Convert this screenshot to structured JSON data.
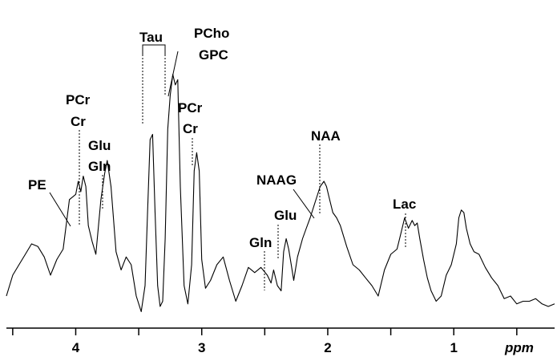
{
  "chart_data": {
    "type": "line",
    "title": "",
    "xlabel": "ppm",
    "ylabel": "",
    "x_reversed": true,
    "xlim": [
      4.55,
      0.2
    ],
    "ylim": [
      0,
      1
    ],
    "grid": false,
    "legend": "none",
    "x_ticks": [
      4,
      3,
      2,
      1
    ],
    "x_tick_labels": [
      "4",
      "3",
      "2",
      "1"
    ],
    "x_minor_ticks": [
      4.5,
      3.5,
      2.5,
      1.5,
      0.5
    ],
    "series": [
      {
        "x": [
          4.55,
          4.5,
          4.45,
          4.4,
          4.35,
          4.3,
          4.25,
          4.2,
          4.15,
          4.1,
          4.05,
          4.0,
          3.98,
          3.96,
          3.94,
          3.92,
          3.9,
          3.87,
          3.84,
          3.8,
          3.77,
          3.75,
          3.72,
          3.68,
          3.64,
          3.6,
          3.56,
          3.52,
          3.48,
          3.45,
          3.43,
          3.41,
          3.39,
          3.37,
          3.35,
          3.33,
          3.31,
          3.29,
          3.27,
          3.25,
          3.23,
          3.21,
          3.19,
          3.17,
          3.14,
          3.11,
          3.08,
          3.06,
          3.04,
          3.02,
          3.0,
          2.97,
          2.93,
          2.88,
          2.83,
          2.78,
          2.73,
          2.68,
          2.63,
          2.58,
          2.53,
          2.48,
          2.45,
          2.43,
          2.4,
          2.37,
          2.35,
          2.33,
          2.31,
          2.29,
          2.27,
          2.24,
          2.2,
          2.17,
          2.14,
          2.1,
          2.06,
          2.03,
          2.01,
          1.99,
          1.96,
          1.93,
          1.9,
          1.85,
          1.8,
          1.75,
          1.7,
          1.65,
          1.6,
          1.55,
          1.5,
          1.45,
          1.42,
          1.39,
          1.36,
          1.33,
          1.31,
          1.29,
          1.27,
          1.24,
          1.21,
          1.18,
          1.14,
          1.1,
          1.06,
          1.02,
          0.98,
          0.96,
          0.94,
          0.92,
          0.9,
          0.87,
          0.84,
          0.8,
          0.75,
          0.7,
          0.65,
          0.6,
          0.55,
          0.5,
          0.45,
          0.4,
          0.35,
          0.3,
          0.25,
          0.2
        ],
        "y": [
          0.08,
          0.16,
          0.2,
          0.24,
          0.28,
          0.27,
          0.23,
          0.16,
          0.22,
          0.26,
          0.45,
          0.47,
          0.52,
          0.48,
          0.54,
          0.5,
          0.35,
          0.29,
          0.24,
          0.45,
          0.55,
          0.6,
          0.5,
          0.25,
          0.18,
          0.23,
          0.2,
          0.08,
          0.02,
          0.12,
          0.4,
          0.68,
          0.7,
          0.4,
          0.12,
          0.04,
          0.06,
          0.3,
          0.72,
          0.85,
          0.93,
          0.89,
          0.91,
          0.5,
          0.12,
          0.05,
          0.2,
          0.56,
          0.63,
          0.56,
          0.22,
          0.11,
          0.14,
          0.2,
          0.23,
          0.14,
          0.06,
          0.12,
          0.19,
          0.17,
          0.19,
          0.16,
          0.13,
          0.18,
          0.12,
          0.1,
          0.25,
          0.3,
          0.26,
          0.2,
          0.14,
          0.23,
          0.3,
          0.34,
          0.38,
          0.44,
          0.5,
          0.52,
          0.5,
          0.46,
          0.4,
          0.38,
          0.35,
          0.27,
          0.2,
          0.18,
          0.15,
          0.12,
          0.08,
          0.18,
          0.24,
          0.26,
          0.32,
          0.38,
          0.34,
          0.37,
          0.35,
          0.36,
          0.3,
          0.22,
          0.15,
          0.1,
          0.06,
          0.08,
          0.16,
          0.2,
          0.28,
          0.38,
          0.41,
          0.4,
          0.34,
          0.28,
          0.25,
          0.24,
          0.19,
          0.15,
          0.12,
          0.07,
          0.08,
          0.05,
          0.06,
          0.06,
          0.07,
          0.05,
          0.04,
          0.05
        ]
      }
    ],
    "annotations": [
      {
        "lines": [
          "PE"
        ],
        "x": 4.02
      },
      {
        "lines": [
          "PCr",
          "Cr"
        ],
        "x": 3.93
      },
      {
        "lines": [
          "Glu",
          "Gln"
        ],
        "x": 3.75
      },
      {
        "lines": [
          "Tau"
        ],
        "x": [
          3.42,
          3.25
        ]
      },
      {
        "lines": [
          "PCho",
          "GPC"
        ],
        "x": 3.21
      },
      {
        "lines": [
          "PCr",
          "Cr"
        ],
        "x": 3.02
      },
      {
        "lines": [
          "NAAG"
        ],
        "x": 2.05
      },
      {
        "lines": [
          "Glu"
        ],
        "x": 2.35
      },
      {
        "lines": [
          "Gln"
        ],
        "x": 2.45
      },
      {
        "lines": [
          "NAA"
        ],
        "x": 2.01
      },
      {
        "lines": [
          "Lac"
        ],
        "x": 1.33
      }
    ]
  }
}
